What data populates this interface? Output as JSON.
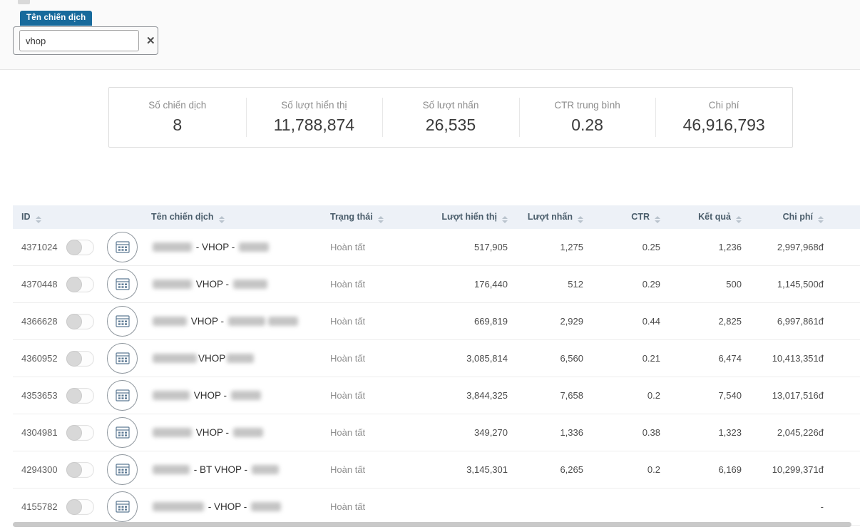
{
  "filter": {
    "tag_label": "Tên chiến dịch",
    "input_value": "vhop",
    "clear_label": "✕"
  },
  "stats": [
    {
      "label": "Số chiến dịch",
      "value": "8"
    },
    {
      "label": "Số lượt hiển thị",
      "value": "11,788,874"
    },
    {
      "label": "Số lượt nhấn",
      "value": "26,535"
    },
    {
      "label": "CTR trung bình",
      "value": "0.28"
    },
    {
      "label": "Chi phí",
      "value": "46,916,793"
    }
  ],
  "table": {
    "headers": {
      "id": "ID",
      "name": "Tên chiến dịch",
      "status": "Trạng thái",
      "impressions": "Lượt hiển thị",
      "clicks": "Lượt nhấn",
      "ctr": "CTR",
      "result": "Kết quả",
      "cost": "Chi phí"
    },
    "rows": [
      {
        "id": "4371024",
        "redacted_before": [
          55
        ],
        "name_visible": " - VHOP - ",
        "redacted_after": [
          42
        ],
        "status": "Hoàn tất",
        "impressions": "517,905",
        "clicks": "1,275",
        "ctr": "0.25",
        "result": "1,236",
        "cost": "2,997,968đ"
      },
      {
        "id": "4370448",
        "redacted_before": [
          55
        ],
        "name_visible": " VHOP - ",
        "redacted_after": [
          48
        ],
        "status": "Hoàn tất",
        "impressions": "176,440",
        "clicks": "512",
        "ctr": "0.29",
        "result": "500",
        "cost": "1,145,500đ"
      },
      {
        "id": "4366628",
        "redacted_before": [
          48
        ],
        "name_visible": " VHOP - ",
        "redacted_after": [
          52,
          42
        ],
        "status": "Hoàn tất",
        "impressions": "669,819",
        "clicks": "2,929",
        "ctr": "0.44",
        "result": "2,825",
        "cost": "6,997,861đ"
      },
      {
        "id": "4360952",
        "redacted_before": [
          62
        ],
        "name_visible": "VHOP",
        "redacted_after": [
          38
        ],
        "status": "Hoàn tất",
        "impressions": "3,085,814",
        "clicks": "6,560",
        "ctr": "0.21",
        "result": "6,474",
        "cost": "10,413,351đ"
      },
      {
        "id": "4353653",
        "redacted_before": [
          52
        ],
        "name_visible": " VHOP - ",
        "redacted_after": [
          42
        ],
        "status": "Hoàn tất",
        "impressions": "3,844,325",
        "clicks": "7,658",
        "ctr": "0.2",
        "result": "7,540",
        "cost": "13,017,516đ"
      },
      {
        "id": "4304981",
        "redacted_before": [
          55
        ],
        "name_visible": " VHOP - ",
        "redacted_after": [
          42
        ],
        "status": "Hoàn tất",
        "impressions": "349,270",
        "clicks": "1,336",
        "ctr": "0.38",
        "result": "1,323",
        "cost": "2,045,226đ"
      },
      {
        "id": "4294300",
        "redacted_before": [
          52
        ],
        "name_visible": " - BT VHOP - ",
        "redacted_after": [
          38
        ],
        "status": "Hoàn tất",
        "impressions": "3,145,301",
        "clicks": "6,265",
        "ctr": "0.2",
        "result": "6,169",
        "cost": "10,299,371đ"
      },
      {
        "id": "4155782",
        "redacted_before": [
          72
        ],
        "name_visible": " - VHOP - ",
        "redacted_after": [
          42
        ],
        "status": "Hoàn tất",
        "impressions": "",
        "clicks": "",
        "ctr": "",
        "result": "",
        "cost": "-"
      }
    ]
  }
}
